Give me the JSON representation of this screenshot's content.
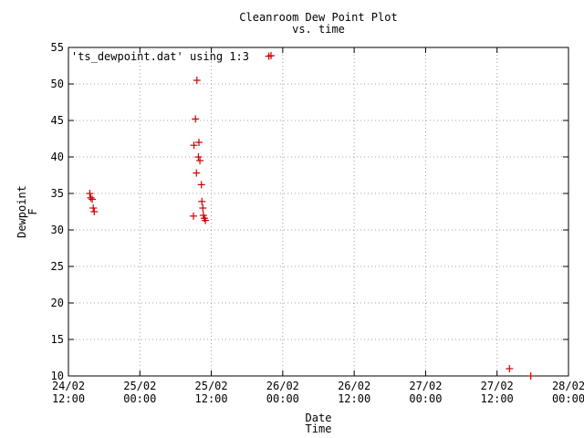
{
  "chart_data": {
    "type": "scatter",
    "title": "Cleanroom Dew Point Plot",
    "subtitle": "vs. time",
    "xlabel": "Date",
    "xlabel2": "Time",
    "ylabel": "Dewpoint",
    "ylabel2": "F",
    "legend": "'ts_dewpoint.dat' using 1:3",
    "legend_position": "top-left",
    "grid": true,
    "xlim": [
      "2002-02-24T12:00",
      "2002-02-28T00:00"
    ],
    "ylim": [
      10,
      55
    ],
    "y_ticks": [
      10,
      15,
      20,
      25,
      30,
      35,
      40,
      45,
      50,
      55
    ],
    "x_ticks": [
      {
        "date": "24/02",
        "time": "12:00",
        "hours": 0
      },
      {
        "date": "25/02",
        "time": "00:00",
        "hours": 12
      },
      {
        "date": "25/02",
        "time": "12:00",
        "hours": 24
      },
      {
        "date": "26/02",
        "time": "00:00",
        "hours": 36
      },
      {
        "date": "26/02",
        "time": "12:00",
        "hours": 48
      },
      {
        "date": "27/02",
        "time": "00:00",
        "hours": 60
      },
      {
        "date": "27/02",
        "time": "12:00",
        "hours": 72
      },
      {
        "date": "28/02",
        "time": "00:00",
        "hours": 84
      }
    ],
    "series": [
      {
        "name": "'ts_dewpoint.dat' using 1:3",
        "color": "#cc0000",
        "marker": "plus",
        "points": [
          {
            "x": "24/02 15:35",
            "y": 35.0
          },
          {
            "x": "24/02 15:45",
            "y": 34.4
          },
          {
            "x": "24/02 16:00",
            "y": 34.2
          },
          {
            "x": "24/02 16:10",
            "y": 33.0
          },
          {
            "x": "24/02 16:20",
            "y": 32.5
          },
          {
            "x": "25/02 09:00",
            "y": 31.9
          },
          {
            "x": "25/02 09:05",
            "y": 41.6
          },
          {
            "x": "25/02 09:20",
            "y": 45.2
          },
          {
            "x": "25/02 09:30",
            "y": 37.8
          },
          {
            "x": "25/02 09:35",
            "y": 50.5
          },
          {
            "x": "25/02 09:50",
            "y": 40.0
          },
          {
            "x": "25/02 09:55",
            "y": 42.0
          },
          {
            "x": "25/02 10:05",
            "y": 39.5
          },
          {
            "x": "25/02 10:20",
            "y": 36.2
          },
          {
            "x": "25/02 10:25",
            "y": 33.9
          },
          {
            "x": "25/02 10:35",
            "y": 33.0
          },
          {
            "x": "25/02 10:40",
            "y": 32.0
          },
          {
            "x": "25/02 10:50",
            "y": 31.6
          },
          {
            "x": "25/02 11:00",
            "y": 31.3
          },
          {
            "x": "25/02 21:40",
            "y": 53.8
          },
          {
            "x": "27/02 14:05",
            "y": 11.0
          },
          {
            "x": "27/02 17:40",
            "y": 10.0
          }
        ]
      }
    ]
  },
  "colors": {
    "marker": "#cc0000",
    "grid": "#a0a0a0",
    "axes": "#000000",
    "background": "#ffffff"
  }
}
